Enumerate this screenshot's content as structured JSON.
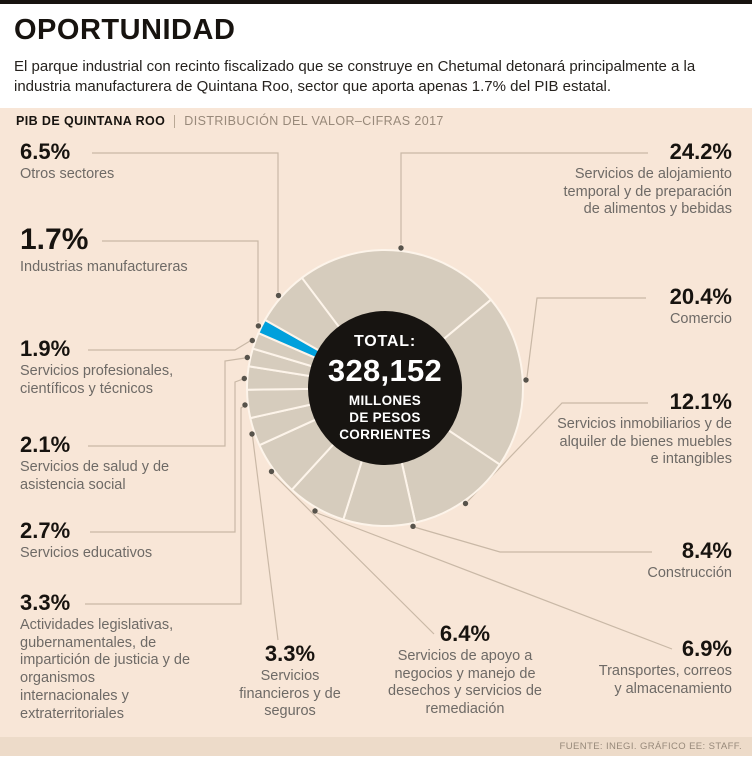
{
  "page": {
    "title": "OPORTUNIDAD",
    "intro": "El parque industrial con recinto fiscalizado que se construye en Chetumal detonará principalmente a la industria manufacturera de Quintana Roo, sector que aporta apenas 1.7% del PIB estatal.",
    "kicker": {
      "label": "PIB DE QUINTANA ROO",
      "detail": "DISTRIBUCIÓN DEL VALOR–CIFRAS 2017"
    },
    "source": "FUENTE: INEGI. GRÁFICO EE: STAFF."
  },
  "colors": {
    "background": "#f8e6d7",
    "slice": "#d6ccbd",
    "highlight": "#00a0dc",
    "center_bg": "#171411",
    "connector": "#c9b8a6",
    "text_dark": "#17130f",
    "text_gray": "#6e6a66",
    "footer_strip": "#eddbc9"
  },
  "chart_data": {
    "type": "pie",
    "style": "donut",
    "title": "PIB DE QUINTANA ROO — DISTRIBUCIÓN DEL VALOR–CIFRAS 2017",
    "unit": "percent",
    "direction": "clockwise",
    "center": {
      "label": "TOTAL:",
      "value": "328,152",
      "sublabel": "MILLONES\nDE PESOS\nCORRIENTES"
    },
    "segments": [
      {
        "name": "Servicios de alojamiento temporal y de preparación de alimentos y bebidas",
        "value": 24.2,
        "pct": "24.2%"
      },
      {
        "name": "Comercio",
        "value": 20.4,
        "pct": "20.4%"
      },
      {
        "name": "Servicios inmobiliarios y de alquiler de bienes muebles e intangibles",
        "value": 12.1,
        "pct": "12.1%"
      },
      {
        "name": "Construcción",
        "value": 8.4,
        "pct": "8.4%"
      },
      {
        "name": "Transportes, correos y almacenamiento",
        "value": 6.9,
        "pct": "6.9%"
      },
      {
        "name": "Servicios de apoyo a negocios y manejo de desechos y servicios de remediación",
        "value": 6.4,
        "pct": "6.4%"
      },
      {
        "name": "Servicios financieros y de seguros",
        "value": 3.3,
        "pct": "3.3%"
      },
      {
        "name": "Actividades legislativas, gubernamentales, de impartición de justicia y de organismos internacionales y extraterritoriales",
        "value": 3.3,
        "pct": "3.3%"
      },
      {
        "name": "Servicios educativos",
        "value": 2.7,
        "pct": "2.7%"
      },
      {
        "name": "Servicios de salud y de asistencia social",
        "value": 2.1,
        "pct": "2.1%"
      },
      {
        "name": "Servicios profesionales, científicos y técnicos",
        "value": 1.9,
        "pct": "1.9%"
      },
      {
        "name": "Industrias manufactureras",
        "value": 1.7,
        "pct": "1.7%",
        "highlight": true
      },
      {
        "name": "Otros sectores",
        "value": 6.5,
        "pct": "6.5%"
      }
    ]
  }
}
